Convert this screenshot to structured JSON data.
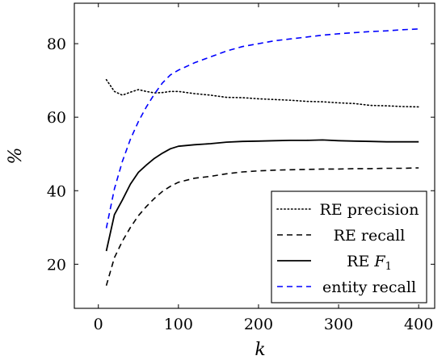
{
  "chart_data": {
    "type": "line",
    "xlabel": "k",
    "ylabel": "%",
    "xlim": [
      -30,
      420
    ],
    "ylim": [
      8,
      91
    ],
    "xticks": [
      0,
      100,
      200,
      300,
      400
    ],
    "yticks": [
      20,
      40,
      60,
      80
    ],
    "grid": false,
    "legend_position": "bottom-right",
    "series": [
      {
        "name": "RE precision",
        "style": "dotted",
        "color": "#000000",
        "x": [
          10,
          20,
          30,
          40,
          50,
          60,
          70,
          80,
          90,
          100,
          120,
          140,
          160,
          180,
          200,
          220,
          240,
          260,
          280,
          300,
          320,
          340,
          360,
          380,
          400
        ],
        "y": [
          70.2,
          67.0,
          66.0,
          66.8,
          67.5,
          67.0,
          66.6,
          66.7,
          67.0,
          67.0,
          66.4,
          66.0,
          65.4,
          65.3,
          65.0,
          64.8,
          64.6,
          64.3,
          64.2,
          63.9,
          63.7,
          63.2,
          63.1,
          62.9,
          62.8
        ]
      },
      {
        "name": "RE recall",
        "style": "dashed",
        "color": "#000000",
        "x": [
          10,
          20,
          30,
          40,
          50,
          60,
          70,
          80,
          90,
          100,
          120,
          140,
          160,
          180,
          200,
          220,
          240,
          260,
          280,
          300,
          320,
          340,
          360,
          380,
          400
        ],
        "y": [
          14.2,
          21.8,
          26.3,
          30.0,
          33.2,
          35.7,
          37.9,
          39.8,
          41.2,
          42.3,
          43.4,
          43.9,
          44.6,
          45.1,
          45.4,
          45.6,
          45.7,
          45.8,
          45.9,
          45.9,
          46.0,
          46.0,
          46.1,
          46.1,
          46.2
        ]
      },
      {
        "name": "RE F_1",
        "style": "solid",
        "color": "#000000",
        "x": [
          10,
          20,
          30,
          40,
          50,
          60,
          70,
          80,
          90,
          100,
          120,
          140,
          160,
          180,
          200,
          220,
          240,
          260,
          280,
          300,
          320,
          340,
          360,
          380,
          400
        ],
        "y": [
          23.6,
          33.5,
          37.5,
          41.8,
          45.0,
          47.0,
          48.8,
          50.2,
          51.4,
          52.1,
          52.5,
          52.8,
          53.2,
          53.4,
          53.5,
          53.6,
          53.7,
          53.7,
          53.8,
          53.6,
          53.5,
          53.4,
          53.3,
          53.3,
          53.3
        ]
      },
      {
        "name": "entity recall",
        "style": "dashed",
        "color": "#0000ff",
        "x": [
          10,
          20,
          30,
          40,
          50,
          60,
          70,
          80,
          90,
          100,
          120,
          140,
          160,
          180,
          200,
          220,
          240,
          260,
          280,
          300,
          320,
          340,
          360,
          380,
          400
        ],
        "y": [
          29.8,
          40.5,
          48.0,
          54.0,
          58.8,
          62.8,
          66.3,
          69.3,
          71.5,
          72.8,
          74.8,
          76.4,
          78.0,
          79.2,
          80.0,
          80.8,
          81.3,
          81.8,
          82.3,
          82.7,
          83.0,
          83.3,
          83.5,
          83.8,
          84.0
        ]
      }
    ]
  }
}
